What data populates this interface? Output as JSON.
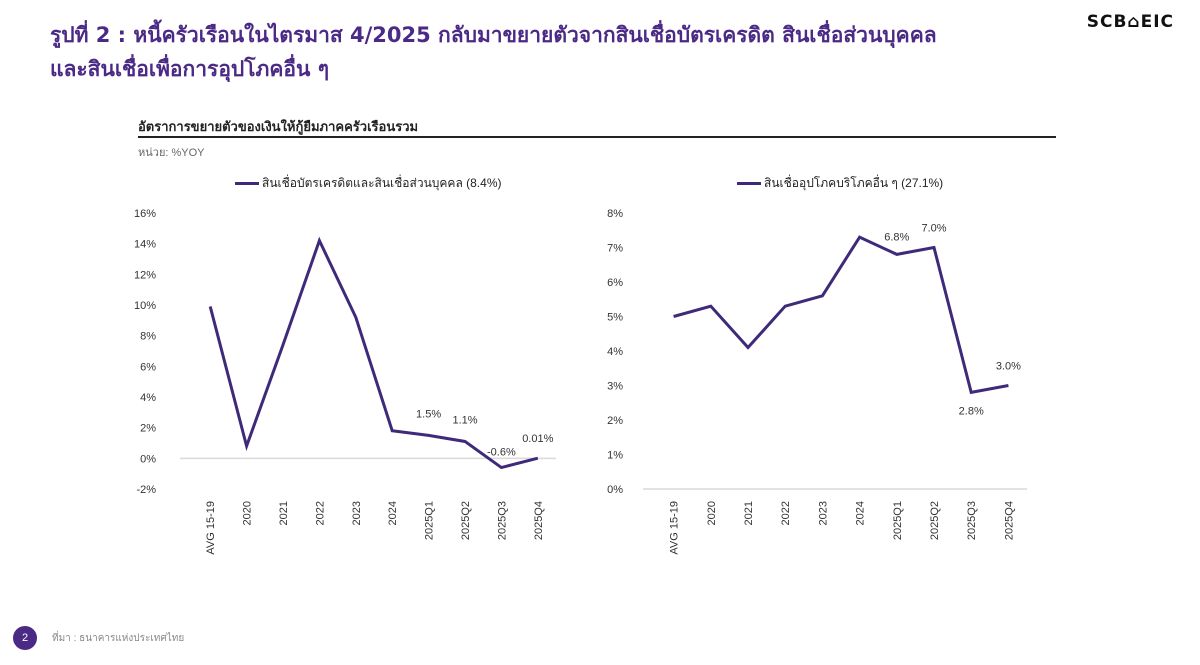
{
  "header": {
    "title_line1": "รูปที่ 2 : หนี้ครัวเรือนในไตรมาส 4/2025 กลับมาขยายตัวจากสินเชื่อบัตรเครดิต สินเชื่อส่วนบุคคล",
    "title_line2": "และสินเชื่อเพื่อการอุปโภคอื่น ๆ",
    "logo": "SCB⌂EIC"
  },
  "panel": {
    "subtitle": "อัตราการขยายตัวของเงินให้กู้ยืมภาคครัวเรือนรวม",
    "unit": "หน่วย: %YOY"
  },
  "footer": {
    "page_number": "2",
    "source": "ที่มา : ธนาคารแห่งประเทศไทย"
  },
  "colors": {
    "line": "#3f2a7a",
    "title": "#4b2a86",
    "zero_line": "#d9d9d9"
  },
  "chart_data": [
    {
      "type": "line",
      "title": "",
      "legend": "สินเชื่อบัตรเครดิตและสินเชื่อส่วนบุคคล (8.4%)",
      "categories": [
        "AVG 15-19",
        "2020",
        "2021",
        "2022",
        "2023",
        "2024",
        "2025Q1",
        "2025Q2",
        "2025Q3",
        "2025Q4"
      ],
      "series": [
        {
          "name": "สินเชื่อบัตรเครดิตและสินเชื่อส่วนบุคคล (8.4%)",
          "values": [
            9.9,
            0.8,
            7.4,
            14.2,
            9.2,
            1.8,
            1.5,
            1.1,
            -0.6,
            0.01
          ]
        }
      ],
      "data_labels": {
        "6": "1.5%",
        "7": "1.1%",
        "8": "-0.6%",
        "9": "0.01%"
      },
      "ylim": [
        -2,
        16
      ],
      "yticks": [
        -2,
        0,
        2,
        4,
        6,
        8,
        10,
        12,
        14,
        16
      ],
      "ytick_labels": [
        "-2%",
        "0%",
        "2%",
        "4%",
        "6%",
        "8%",
        "10%",
        "12%",
        "14%",
        "16%"
      ],
      "xlabel": "",
      "ylabel": "%YOY",
      "grid": false,
      "legend_position": "top"
    },
    {
      "type": "line",
      "title": "",
      "legend": "สินเชื่ออุปโภคบริโภคอื่น ๆ (27.1%)",
      "categories": [
        "AVG 15-19",
        "2020",
        "2021",
        "2022",
        "2023",
        "2024",
        "2025Q1",
        "2025Q2",
        "2025Q3",
        "2025Q4"
      ],
      "series": [
        {
          "name": "สินเชื่ออุปโภคบริโภคอื่น ๆ (27.1%)",
          "values": [
            5.0,
            5.3,
            4.1,
            5.3,
            5.6,
            7.3,
            6.8,
            7.0,
            2.8,
            3.0
          ]
        }
      ],
      "data_labels": {
        "6": "6.8%",
        "7": "7.0%",
        "8": "2.8%",
        "9": "3.0%"
      },
      "ylim": [
        0,
        8
      ],
      "yticks": [
        0,
        1,
        2,
        3,
        4,
        5,
        6,
        7,
        8
      ],
      "ytick_labels": [
        "0%",
        "1%",
        "2%",
        "3%",
        "4%",
        "5%",
        "6%",
        "7%",
        "8%"
      ],
      "xlabel": "",
      "ylabel": "%YOY",
      "grid": false,
      "legend_position": "top"
    }
  ]
}
